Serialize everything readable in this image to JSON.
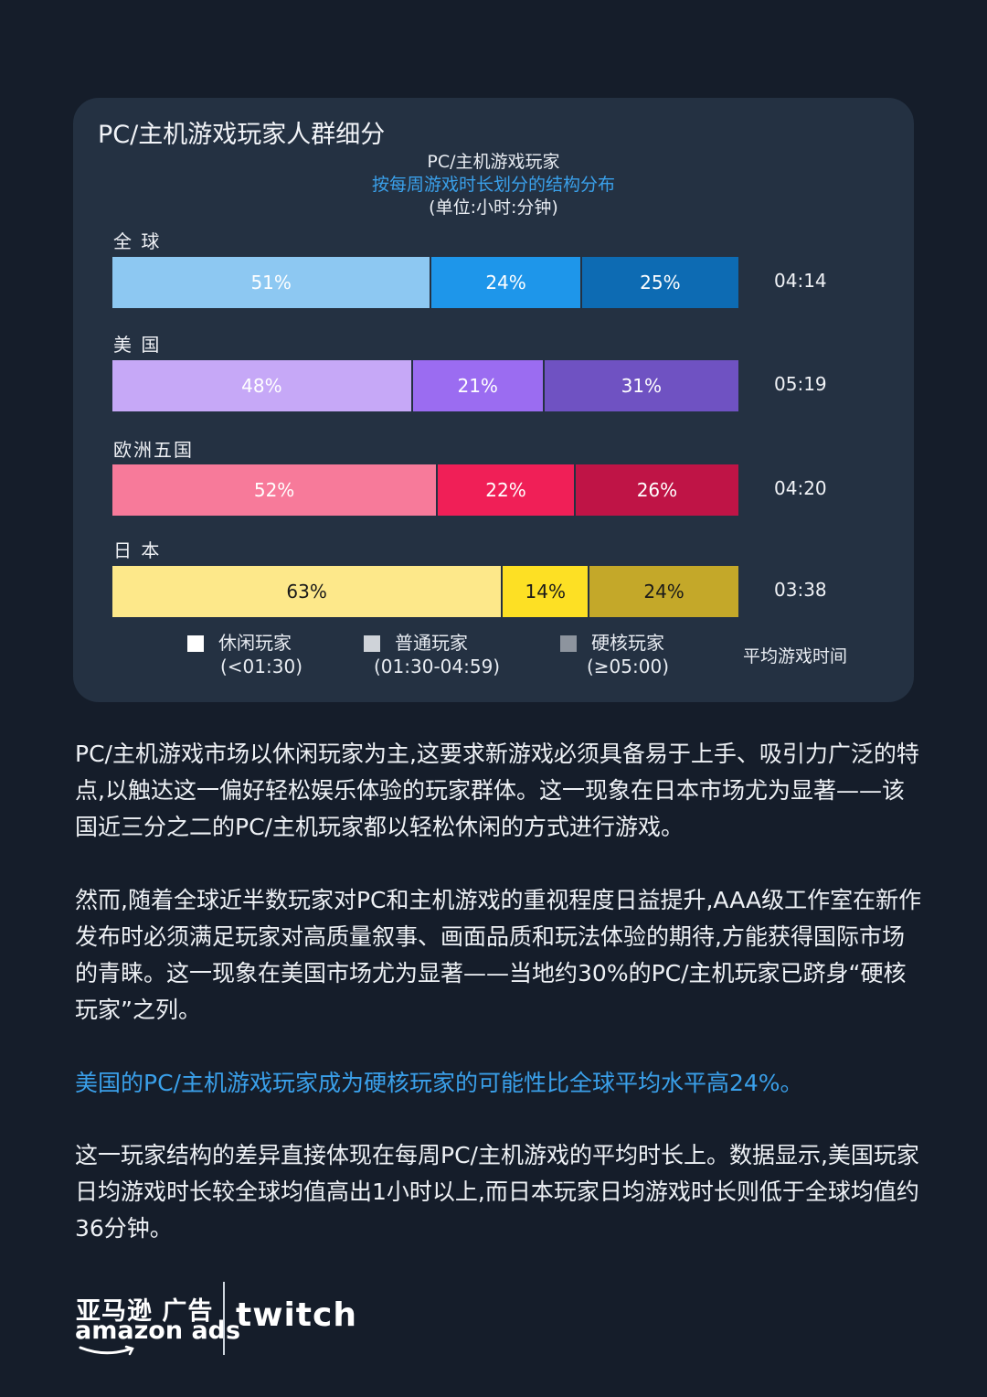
{
  "chart_data": {
    "type": "bar",
    "title": "PC/主机游戏玩家人群细分",
    "subtitle_lines": [
      "PC/主机游戏玩家",
      "按每周游戏时长划分的结构分布",
      "(单位:小时:分钟)"
    ],
    "categories": [
      "全 球",
      "美 国",
      "欧洲五国",
      "日 本"
    ],
    "series": [
      {
        "name": "休闲玩家",
        "range": "(<01:30)",
        "values": [
          51,
          48,
          52,
          63
        ]
      },
      {
        "name": "普通玩家",
        "range": "(01:30-04:59)",
        "values": [
          24,
          21,
          22,
          14
        ]
      },
      {
        "name": "硬核玩家",
        "range": "(≥05:00)",
        "values": [
          25,
          31,
          26,
          24
        ]
      }
    ],
    "value_labels": [
      [
        "51%",
        "24%",
        "25%"
      ],
      [
        "48%",
        "21%",
        "31%"
      ],
      [
        "52%",
        "22%",
        "26%"
      ],
      [
        "63%",
        "14%",
        "24%"
      ]
    ],
    "average_label": "平均游戏时间",
    "averages": [
      "04:14",
      "05:19",
      "04:20",
      "03:38"
    ],
    "stacked": true,
    "legend_position": "bottom",
    "colors": [
      [
        "#8dc8f2",
        "#1e96ea",
        "#0d6bb3"
      ],
      [
        "#c6a8f7",
        "#9b6cf1",
        "#6f52c2"
      ],
      [
        "#f77a9a",
        "#f01f57",
        "#bf1446"
      ],
      [
        "#fde88a",
        "#fde024",
        "#c4a829"
      ]
    ]
  },
  "paragraphs": [
    "PC/主机游戏市场以休闲玩家为主,这要求新游戏必须具备易于上手、吸引力广泛的特点,以触达这一偏好轻松娱乐体验的玩家群体。这一现象在日本市场尤为显著——该国近三分之二的PC/主机玩家都以轻松休闲的方式进行游戏。",
    "然而,随着全球近半数玩家对PC和主机游戏的重视程度日益提升,AAA级工作室在新作发布时必须满足玩家对高质量叙事、画面品质和玩法体验的期待,方能获得国际市场的青睐。这一现象在美国市场尤为显著——当地约30%的PC/主机玩家已跻身“硬核玩家”之列。",
    "美国的PC/主机游戏玩家成为硬核玩家的可能性比全球平均水平高24%。",
    "这一玩家结构的差异直接体现在每周PC/主机游戏的平均时长上。数据显示,美国玩家日均游戏时长较全球均值高出1小时以上,而日本玩家日均游戏时长则低于全球均值约36分钟。"
  ],
  "footer": {
    "brand_cn": "亚马逊 广告",
    "brand_en": "amazon ads",
    "partner": "twitch"
  }
}
